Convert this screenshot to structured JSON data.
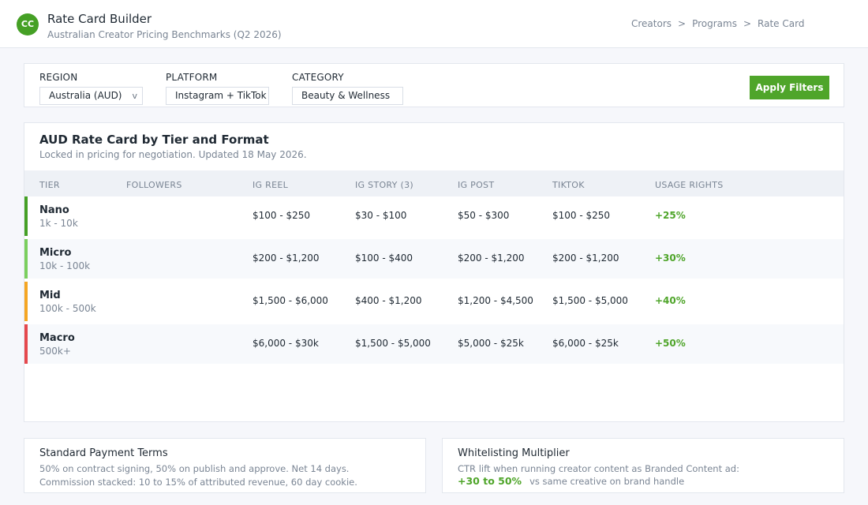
{
  "header": {
    "logo_text": "CC",
    "title": "Rate Card Builder",
    "subtitle": "Australian Creator Pricing Benchmarks (Q2 2026)",
    "breadcrumb": [
      "Creators",
      "Programs",
      "Rate Card"
    ],
    "breadcrumb_sep": ">"
  },
  "filters": {
    "region": {
      "label": "REGION",
      "value": "Australia (AUD)",
      "caret": "v"
    },
    "platform": {
      "label": "PLATFORM",
      "value": "Instagram + TikTok"
    },
    "category": {
      "label": "CATEGORY",
      "value": "Beauty & Wellness"
    },
    "apply_label": "Apply Filters"
  },
  "rate_card": {
    "title": "AUD Rate Card by Tier and Format",
    "subtitle": "Locked in pricing for negotiation. Updated 18 May 2026.",
    "columns": [
      "TIER",
      "FOLLOWERS",
      "IG REEL",
      "IG STORY (3)",
      "IG POST",
      "TIKTOK",
      "USAGE RIGHTS"
    ],
    "rows": [
      {
        "tier": "Nano",
        "followers": "1k - 10k",
        "ig_reel": "$100 - $250",
        "ig_story": "$30 - $100",
        "ig_post": "$50 - $300",
        "tiktok": "$100 - $250",
        "usage": "+25%",
        "color": "#45a025"
      },
      {
        "tier": "Micro",
        "followers": "10k - 100k",
        "ig_reel": "$200 - $1,200",
        "ig_story": "$100 - $400",
        "ig_post": "$200 - $1,200",
        "tiktok": "$200 - $1,200",
        "usage": "+30%",
        "color": "#7bcf5e"
      },
      {
        "tier": "Mid",
        "followers": "100k - 500k",
        "ig_reel": "$1,500 - $6,000",
        "ig_story": "$400 - $1,200",
        "ig_post": "$1,200 - $4,500",
        "tiktok": "$1,500 - $5,000",
        "usage": "+40%",
        "color": "#f5a623"
      },
      {
        "tier": "Macro",
        "followers": "500k+",
        "ig_reel": "$6,000 - $30k",
        "ig_story": "$1,500 - $5,000",
        "ig_post": "$5,000 - $25k",
        "tiktok": "$6,000 - $25k",
        "usage": "+50%",
        "color": "#e5484d"
      }
    ]
  },
  "payment_terms": {
    "title": "Standard Payment Terms",
    "line1": "50% on contract signing, 50% on publish and approve. Net 14 days.",
    "line2": "Commission stacked: 10 to 15% of attributed revenue, 60 day cookie."
  },
  "whitelisting": {
    "title": "Whitelisting Multiplier",
    "line1": "CTR lift when running creator content as Branded Content ad:",
    "highlight": "+30 to 50%",
    "line2": "vs same creative on brand handle"
  }
}
